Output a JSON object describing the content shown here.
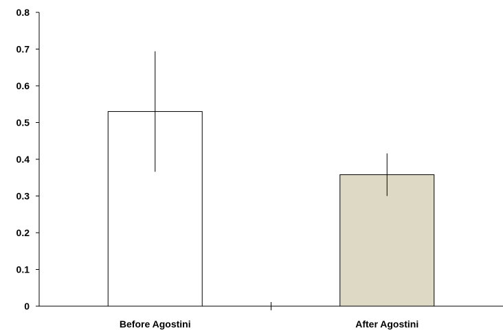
{
  "chart_data": {
    "type": "bar",
    "title": "",
    "xlabel": "",
    "ylabel": "",
    "ylim": [
      0,
      0.8
    ],
    "yticks": [
      "0",
      "0.1",
      "0.2",
      "0.3",
      "0.4",
      "0.5",
      "0.6",
      "0.7",
      "0.8"
    ],
    "categories": [
      "Before Agostini",
      "After Agostini"
    ],
    "values": [
      0.53,
      0.358
    ],
    "error_bars": [
      {
        "low": 0.366,
        "high": 0.694
      },
      {
        "low": 0.3,
        "high": 0.416
      }
    ],
    "bar_colors": [
      "#ffffff",
      "#ddd9c4"
    ],
    "grid": false,
    "legend": "none"
  }
}
